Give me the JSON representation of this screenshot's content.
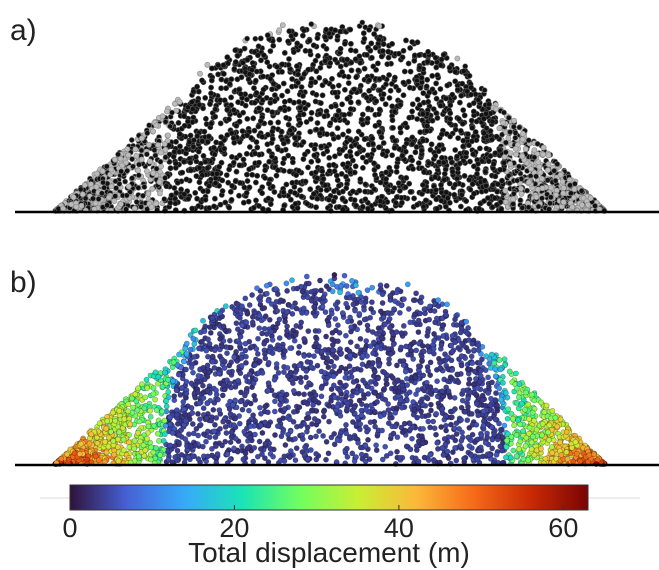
{
  "panels": [
    {
      "label": "a)"
    },
    {
      "label": "b)"
    }
  ],
  "colorbar": {
    "label": "Total displacement (m)",
    "lim": [
      0,
      63
    ],
    "ticks": [
      0,
      20,
      40,
      60
    ],
    "colors": [
      "#30123b",
      "#4662d7",
      "#36aaf9",
      "#1ae4b6",
      "#72fe5e",
      "#c8ef34",
      "#faba39",
      "#f66b19",
      "#ca2a04",
      "#7a0403"
    ]
  }
}
